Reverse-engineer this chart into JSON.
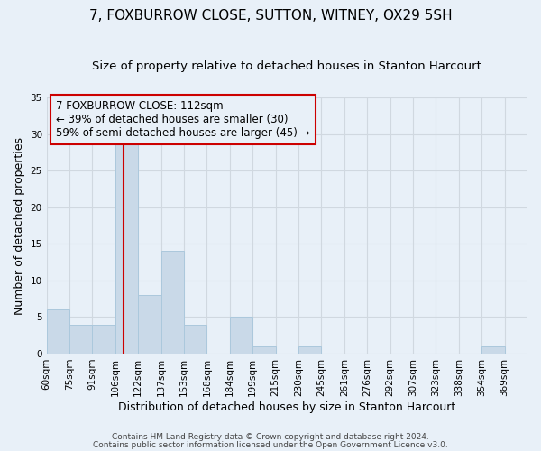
{
  "title": "7, FOXBURROW CLOSE, SUTTON, WITNEY, OX29 5SH",
  "subtitle": "Size of property relative to detached houses in Stanton Harcourt",
  "xlabel": "Distribution of detached houses by size in Stanton Harcourt",
  "ylabel": "Number of detached properties",
  "bin_labels": [
    "60sqm",
    "75sqm",
    "91sqm",
    "106sqm",
    "122sqm",
    "137sqm",
    "153sqm",
    "168sqm",
    "184sqm",
    "199sqm",
    "215sqm",
    "230sqm",
    "245sqm",
    "261sqm",
    "276sqm",
    "292sqm",
    "307sqm",
    "323sqm",
    "338sqm",
    "354sqm",
    "369sqm"
  ],
  "counts": [
    6,
    4,
    4,
    29,
    8,
    14,
    4,
    0,
    5,
    1,
    0,
    1,
    0,
    0,
    0,
    0,
    0,
    0,
    0,
    1,
    0
  ],
  "bar_color": "#c9d9e8",
  "bar_edge_color": "#abc8dc",
  "grid_color": "#d0d8e0",
  "bg_color": "#e8f0f8",
  "vline_bar_index": 3.53,
  "vline_color": "#cc0000",
  "annotation_text": "7 FOXBURROW CLOSE: 112sqm\n← 39% of detached houses are smaller (30)\n59% of semi-detached houses are larger (45) →",
  "annotation_box_edge": "#cc0000",
  "ylim": [
    0,
    35
  ],
  "yticks": [
    0,
    5,
    10,
    15,
    20,
    25,
    30,
    35
  ],
  "footer1": "Contains HM Land Registry data © Crown copyright and database right 2024.",
  "footer2": "Contains public sector information licensed under the Open Government Licence v3.0.",
  "title_fontsize": 11,
  "subtitle_fontsize": 9.5,
  "xlabel_fontsize": 9,
  "ylabel_fontsize": 9,
  "annot_fontsize": 8.5,
  "tick_fontsize": 7.5,
  "footer_fontsize": 6.5
}
